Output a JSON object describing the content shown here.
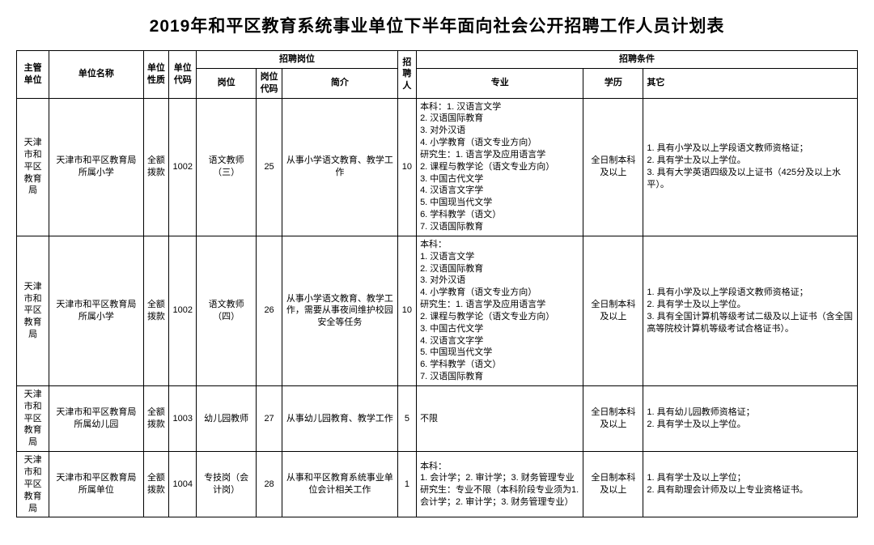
{
  "title": "2019年和平区教育系统事业单位下半年面向社会公开招聘工作人员计划表",
  "header": {
    "supervisor": "主管单位",
    "unit_name": "单位名称",
    "unit_nature": "单位性质",
    "unit_code": "单位代码",
    "recruit_post_group": "招聘岗位",
    "position": "岗位",
    "position_code": "岗位代码",
    "intro": "简介",
    "recruit_num": "招聘人",
    "condition_group": "招聘条件",
    "major": "专业",
    "education": "学历",
    "other": "其它"
  },
  "rows": [
    {
      "supervisor": "天津市和平区教育局",
      "unit_name": "天津市和平区教育局所属小学",
      "unit_nature": "全额拨款",
      "unit_code": "1002",
      "position": "语文教师（三）",
      "position_code": "25",
      "intro": "从事小学语文教育、教学工作",
      "num": "10",
      "major": "本科：1. 汉语言文学\n2. 汉语国际教育\n3. 对外汉语\n4. 小学教育（语文专业方向）\n研究生：1. 语言学及应用语言学\n2. 课程与教学论（语文专业方向）\n3. 中国古代文学\n4. 汉语言文字学\n5. 中国现当代文学\n6. 学科教学（语文）\n7. 汉语国际教育",
      "education": "全日制本科及以上",
      "other": "1. 具有小学及以上学段语文教师资格证；\n2. 具有学士及以上学位。\n3. 具有大学英语四级及以上证书（425分及以上水平）。"
    },
    {
      "supervisor": "天津市和平区教育局",
      "unit_name": "天津市和平区教育局所属小学",
      "unit_nature": "全额拨款",
      "unit_code": "1002",
      "position": "语文教师（四）",
      "position_code": "26",
      "intro": "从事小学语文教育、教学工作，需要从事夜间维护校园安全等任务",
      "num": "10",
      "major": "本科：\n1. 汉语言文学\n2. 汉语国际教育\n3. 对外汉语\n4. 小学教育（语文专业方向）\n研究生：1. 语言学及应用语言学\n2. 课程与教学论（语文专业方向）\n3. 中国古代文学\n4. 汉语言文字学\n5. 中国现当代文学\n6. 学科教学（语文）\n7. 汉语国际教育",
      "education": "全日制本科及以上",
      "other": "1. 具有小学及以上学段语文教师资格证；\n2. 具有学士及以上学位。\n3. 具有全国计算机等级考试二级及以上证书（含全国高等院校计算机等级考试合格证书）。"
    },
    {
      "supervisor": "天津市和平区教育局",
      "unit_name": "天津市和平区教育局所属幼儿园",
      "unit_nature": "全额拨款",
      "unit_code": "1003",
      "position": "幼儿园教师",
      "position_code": "27",
      "intro": "从事幼儿园教育、教学工作",
      "num": "5",
      "major": "不限",
      "education": "全日制本科及以上",
      "other": "1. 具有幼儿园教师资格证；\n2. 具有学士及以上学位。"
    },
    {
      "supervisor": "天津市和平区教育局",
      "unit_name": "天津市和平区教育局所属单位",
      "unit_nature": "全额拨款",
      "unit_code": "1004",
      "position": "专技岗（会计岗）",
      "position_code": "28",
      "intro": "从事和平区教育系统事业单位会计相关工作",
      "num": "1",
      "major": "本科：\n1. 会计学；2. 审计学；3. 财务管理专业\n研究生：专业不限（本科阶段专业须为1. 会计学；2. 审计学；3. 财务管理专业）",
      "education": "全日制本科及以上",
      "other": "1. 具有学士及以上学位；\n2. 具有助理会计师及以上专业资格证书。"
    }
  ]
}
